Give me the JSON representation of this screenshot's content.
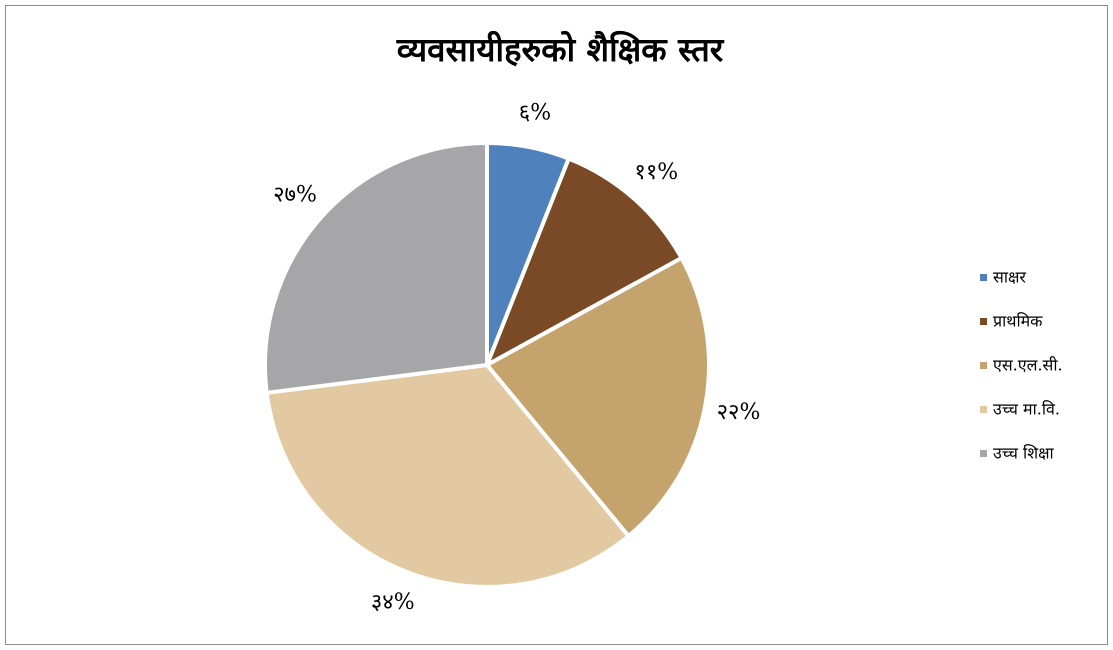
{
  "chart_data": {
    "type": "pie",
    "title": "व्यवसायीहरुको शैक्षिक स्तर",
    "categories": [
      "साक्षर",
      "प्राथमिक",
      "एस.एल.सी.",
      "उच्च मा.वि.",
      "उच्च शिक्षा"
    ],
    "values": [
      6,
      11,
      22,
      34,
      27
    ],
    "value_labels": [
      "६%",
      "११%",
      "२२%",
      "३४%",
      "२७%"
    ],
    "colors": [
      "#4f81bd",
      "#7a4a26",
      "#c4a46c",
      "#e2c9a1",
      "#a6a6a8"
    ],
    "legend": "right"
  }
}
